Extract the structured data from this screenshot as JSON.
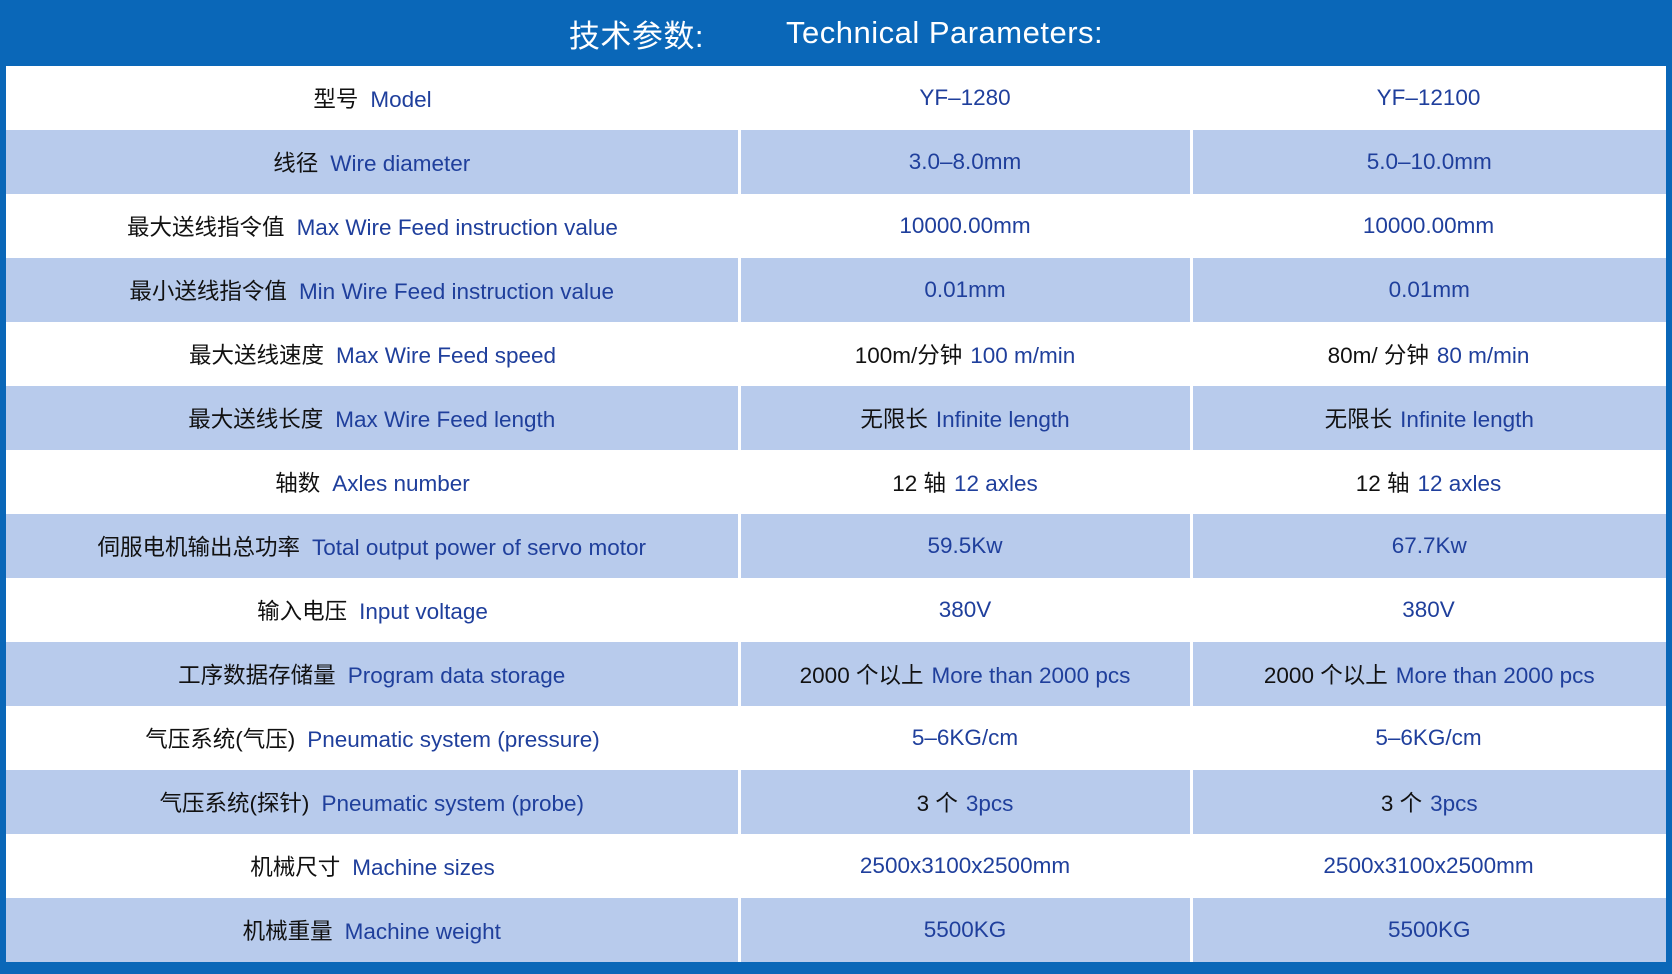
{
  "banner": {
    "zh": "技术参数:",
    "en": "Technical Parameters:"
  },
  "rows": [
    {
      "zh": "型号",
      "en": "Model",
      "v1_zh": "",
      "v1_en": "YF–1280",
      "v2_zh": "",
      "v2_en": "YF–12100"
    },
    {
      "zh": "线径",
      "en": "Wire diameter",
      "v1_zh": "",
      "v1_en": "3.0–8.0mm",
      "v2_zh": "",
      "v2_en": "5.0–10.0mm"
    },
    {
      "zh": "最大送线指令值",
      "en": "Max Wire Feed instruction value",
      "v1_zh": "",
      "v1_en": "10000.00mm",
      "v2_zh": "",
      "v2_en": "10000.00mm"
    },
    {
      "zh": "最小送线指令值",
      "en": "Min Wire Feed instruction value",
      "v1_zh": "",
      "v1_en": "0.01mm",
      "v2_zh": "",
      "v2_en": "0.01mm"
    },
    {
      "zh": "最大送线速度",
      "en": "Max Wire Feed speed",
      "v1_zh": "100m/分钟",
      "v1_en": "100 m/min",
      "v2_zh": "80m/ 分钟",
      "v2_en": "80 m/min"
    },
    {
      "zh": "最大送线长度",
      "en": "Max Wire Feed length",
      "v1_zh": "无限长",
      "v1_en": "Infinite length",
      "v2_zh": "无限长",
      "v2_en": "Infinite length"
    },
    {
      "zh": "轴数",
      "en": "Axles number",
      "v1_zh": "12 轴",
      "v1_en": "12 axles",
      "v2_zh": "12 轴",
      "v2_en": "12 axles"
    },
    {
      "zh": "伺服电机输出总功率",
      "en": "Total output power of servo motor",
      "v1_zh": "",
      "v1_en": "59.5Kw",
      "v2_zh": "",
      "v2_en": "67.7Kw"
    },
    {
      "zh": "输入电压",
      "en": "Input voltage",
      "v1_zh": "",
      "v1_en": "380V",
      "v2_zh": "",
      "v2_en": "380V"
    },
    {
      "zh": "工序数据存储量",
      "en": "Program data storage",
      "v1_zh": "2000 个以上",
      "v1_en": "More than 2000 pcs",
      "v2_zh": "2000 个以上",
      "v2_en": "More than 2000 pcs"
    },
    {
      "zh": "气压系统(气压)",
      "en": "Pneumatic system (pressure)",
      "v1_zh": "",
      "v1_en": "5–6KG/cm",
      "v2_zh": "",
      "v2_en": "5–6KG/cm"
    },
    {
      "zh": "气压系统(探针)",
      "en": "Pneumatic system (probe)",
      "v1_zh": "3 个",
      "v1_en": "3pcs",
      "v2_zh": "3 个",
      "v2_en": "3pcs"
    },
    {
      "zh": "机械尺寸",
      "en": "Machine sizes",
      "v1_zh": "",
      "v1_en": "2500x3100x2500mm",
      "v2_zh": "",
      "v2_en": "2500x3100x2500mm"
    },
    {
      "zh": "机械重量",
      "en": "Machine weight",
      "v1_zh": "",
      "v1_en": "5500KG",
      "v2_zh": "",
      "v2_en": "5500KG"
    }
  ]
}
